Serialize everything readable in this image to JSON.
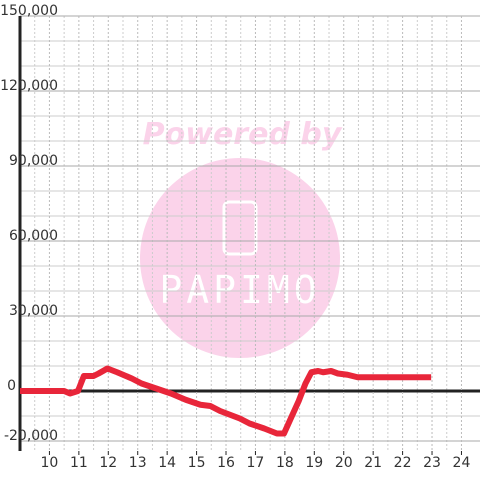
{
  "chart_data": {
    "type": "line",
    "x": [
      9,
      10.5,
      10.7,
      10.97,
      11.17,
      11.5,
      11.67,
      11.97,
      12.3,
      12.8,
      13.13,
      13.63,
      14.13,
      14.63,
      15.13,
      15.47,
      15.8,
      16.47,
      16.8,
      17.3,
      17.73,
      17.97,
      18.2,
      18.47,
      18.7,
      18.9,
      19.13,
      19.3,
      19.57,
      19.8,
      20.13,
      20.47,
      22.97
    ],
    "series": [
      {
        "color": "#e8263a",
        "values": [
          0,
          0,
          -1000,
          0,
          6000,
          6000,
          7000,
          9000,
          7500,
          5000,
          3000,
          1000,
          -1000,
          -3500,
          -5500,
          -6000,
          -8000,
          -11000,
          -13000,
          -15000,
          -17000,
          -17000,
          -11000,
          -4000,
          3000,
          7500,
          8000,
          7500,
          8000,
          7000,
          6500,
          5500,
          5500
        ]
      }
    ],
    "xlim": [
      9,
      24.63
    ],
    "xticks": [
      10,
      11,
      12,
      13,
      14,
      15,
      16,
      17,
      18,
      19,
      20,
      21,
      22,
      23,
      24
    ],
    "x_minor_grid": [
      9.5,
      10.5,
      11.5,
      12.5,
      13.5,
      14.5,
      15.5,
      16.5,
      17.5,
      18.5,
      19.5,
      20.5,
      21.5,
      22.5,
      23.5
    ],
    "ylim": [
      -24000,
      150000
    ],
    "yticks": [
      {
        "value": -20000,
        "label": "-20,000"
      },
      0,
      {
        "value": 30000,
        "label": "30,000"
      },
      {
        "value": 60000,
        "label": "60,000"
      },
      {
        "value": 90000,
        "label": "90,000"
      },
      {
        "value": 120000,
        "label": "120,000"
      },
      {
        "value": 150000,
        "label": "150,000"
      }
    ],
    "y_minor_grid": [
      -10000,
      10000,
      20000,
      40000,
      50000,
      70000,
      80000,
      100000,
      110000,
      130000,
      140000
    ],
    "grid": true,
    "watermark": {
      "line1": "Powered by",
      "line2": "PAPIMO"
    }
  }
}
